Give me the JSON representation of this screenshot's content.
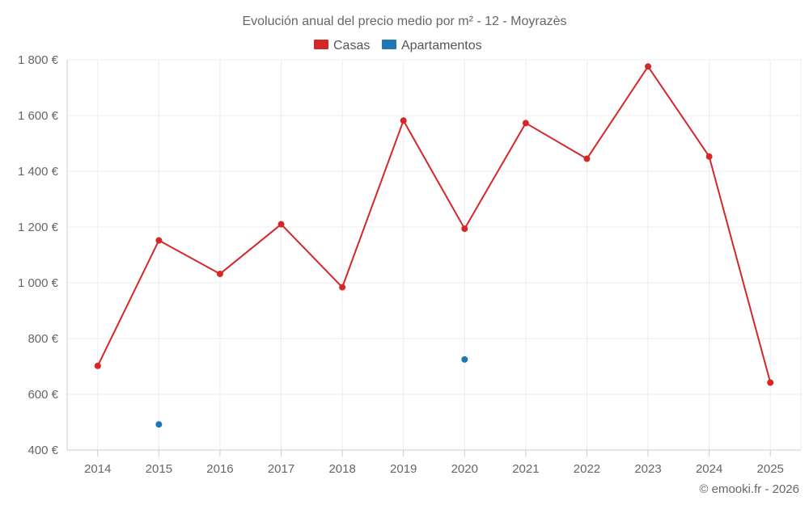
{
  "chart_data": {
    "type": "line",
    "title": "Evolución anual del precio medio por m² - 12 - Moyrazès",
    "categories": [
      "2014",
      "2015",
      "2016",
      "2017",
      "2018",
      "2019",
      "2020",
      "2021",
      "2022",
      "2023",
      "2024",
      "2025"
    ],
    "series": [
      {
        "name": "Casas",
        "color": "#d62728",
        "values": [
          702,
          1152,
          1032,
          1210,
          984,
          1582,
          1194,
          1573,
          1445,
          1776,
          1453,
          642
        ]
      },
      {
        "name": "Apartamentos",
        "color": "#1f77b4",
        "values": [
          null,
          492,
          null,
          null,
          null,
          null,
          725,
          null,
          null,
          null,
          null,
          null
        ]
      }
    ],
    "ylim": [
      400,
      1800
    ],
    "yticks": [
      400,
      600,
      800,
      1000,
      1200,
      1400,
      1600,
      1800
    ],
    "ytick_labels": [
      "400 €",
      "600 €",
      "800 €",
      "1 000 €",
      "1 200 €",
      "1 400 €",
      "1 600 €",
      "1 800 €"
    ],
    "grid": true,
    "legend_position": "top-center",
    "xlabel": "",
    "ylabel": ""
  },
  "credit": "© emooki.fr - 2026"
}
